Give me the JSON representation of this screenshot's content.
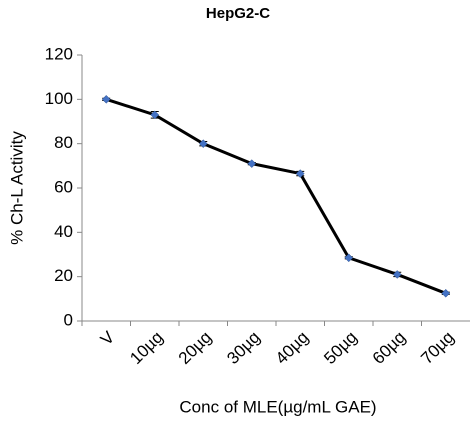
{
  "chart_data": {
    "type": "line",
    "title": "HepG2-C",
    "x_label": "Conc of MLE(µg/mL GAE)",
    "y_label": "% Ch-L Activity",
    "categories": [
      "V",
      "10µg",
      "20µg",
      "30µg",
      "40µg",
      "50µg",
      "60µg",
      "70µg"
    ],
    "series": [
      {
        "name": "HepG2-C",
        "color": "#000000",
        "marker_color": "#4472c4",
        "values": [
          100,
          93,
          80,
          71,
          66.5,
          28.5,
          21,
          12.5
        ],
        "errors": [
          0.5,
          1.5,
          1,
          0.5,
          1,
          0.5,
          1,
          0.5
        ]
      }
    ],
    "ylim": [
      0,
      120
    ],
    "yticks": [
      0,
      20,
      40,
      60,
      80,
      100,
      120
    ],
    "grid": false
  }
}
